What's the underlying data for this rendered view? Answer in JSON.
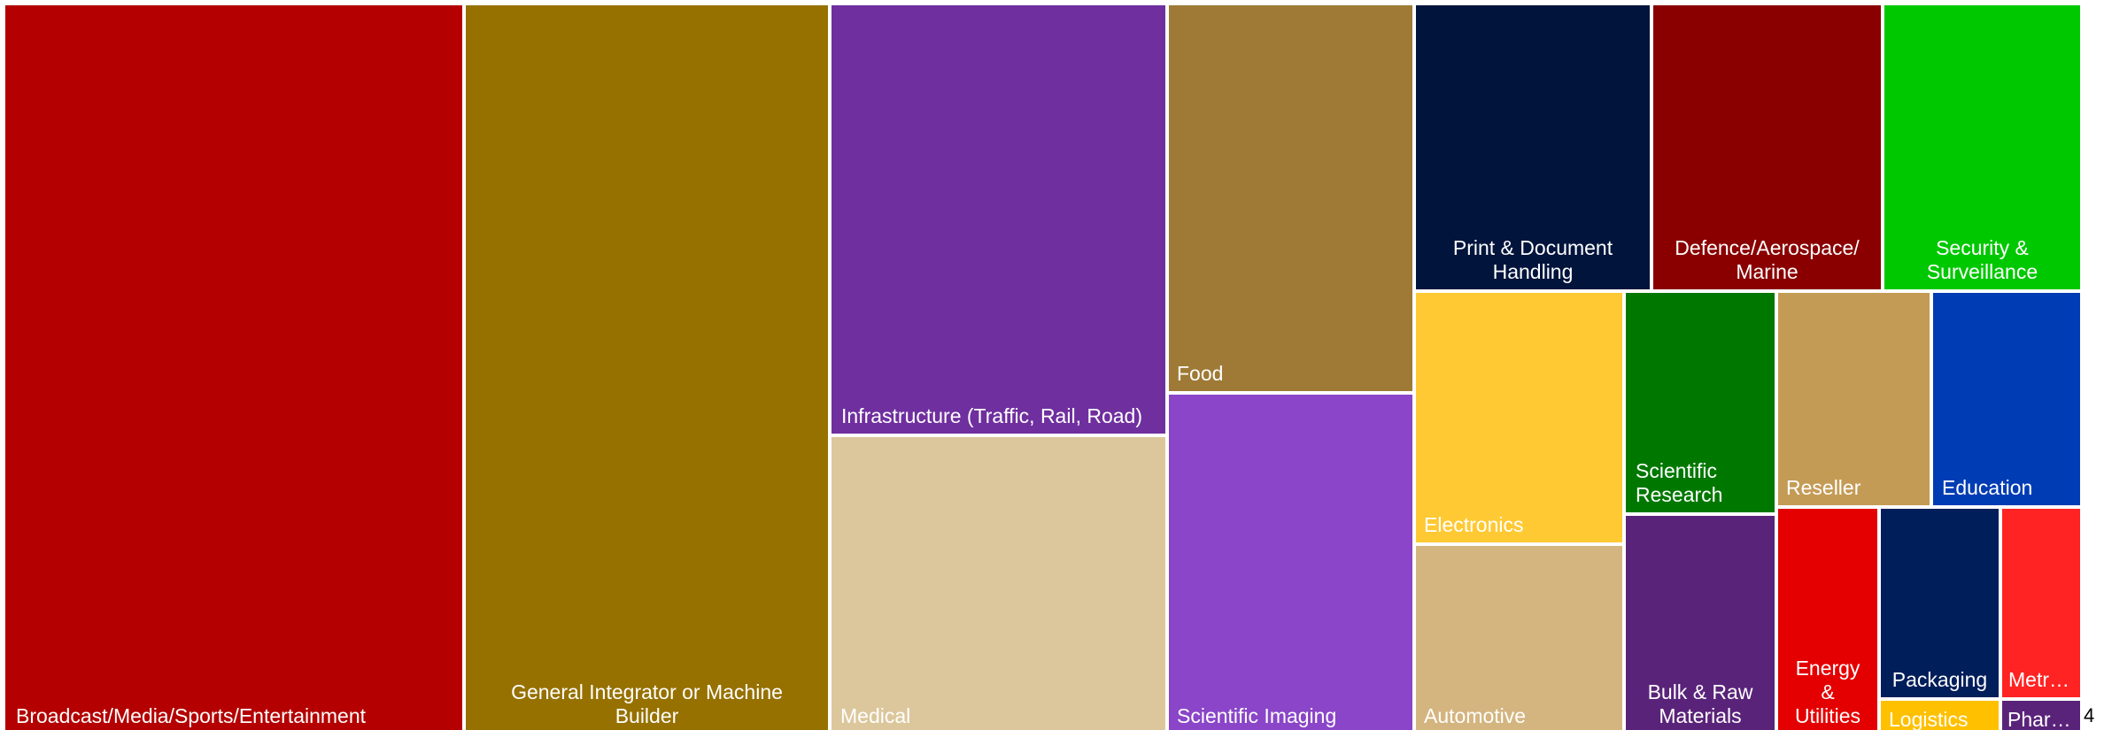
{
  "chart_data": {
    "type": "treemap",
    "title": "",
    "overflow_count": "4",
    "tiles": [
      {
        "key": "broadcast",
        "label": "Broadcast/Media/Sports/Entertainment",
        "lines": [
          "Broadcast/Media/Sports/Entertainment"
        ],
        "color": "#b40000",
        "value": 100
      },
      {
        "key": "general-integrator",
        "label": "General Integrator or Machine Builder",
        "lines": [
          "General Integrator or Machine",
          "Builder"
        ],
        "color": "#967100",
        "value": 80
      },
      {
        "key": "infrastructure",
        "label": "Infrastructure (Traffic, Rail, Road)",
        "lines": [
          "Infrastructure (Traffic, Rail, Road)"
        ],
        "color": "#6f2f9f",
        "value": 44
      },
      {
        "key": "medical",
        "label": "Medical",
        "lines": [
          "Medical"
        ],
        "color": "#dcc79c",
        "value": 31
      },
      {
        "key": "food",
        "label": "Food",
        "lines": [
          "Food"
        ],
        "color": "#9e7a36",
        "value": 29
      },
      {
        "key": "scientific-imaging",
        "label": "Scientific Imaging",
        "lines": [
          "Scientific Imaging"
        ],
        "color": "#8a45c8",
        "value": 27
      },
      {
        "key": "print-document",
        "label": "Print & Document Handling",
        "lines": [
          "Print & Document",
          "Handling"
        ],
        "color": "#00143c",
        "value": 20
      },
      {
        "key": "defence",
        "label": "Defence/Aerospace/ Marine",
        "lines": [
          "Defence/Aerospace/",
          "Marine"
        ],
        "color": "#8a0000",
        "value": 19
      },
      {
        "key": "security",
        "label": "Security & Surveillance",
        "lines": [
          "Security &",
          "Surveillance"
        ],
        "color": "#00c800",
        "value": 17
      },
      {
        "key": "electronics",
        "label": "Electronics",
        "lines": [
          "Electronics"
        ],
        "color": "#ffc933",
        "value": 15
      },
      {
        "key": "automotive",
        "label": "Automotive",
        "lines": [
          "Automotive"
        ],
        "color": "#d4b57f",
        "value": 11.5
      },
      {
        "key": "scientific-research",
        "label": "Scientific Research",
        "lines": [
          "Scientific",
          "Research"
        ],
        "color": "#007800",
        "value": 9
      },
      {
        "key": "bulk-raw",
        "label": "Bulk & Raw Materials",
        "lines": [
          "Bulk & Raw",
          "Materials"
        ],
        "color": "#5a237a",
        "value": 8.6
      },
      {
        "key": "reseller",
        "label": "Reseller",
        "lines": [
          "Reseller"
        ],
        "color": "#c49b55",
        "value": 8.2
      },
      {
        "key": "education",
        "label": "Education",
        "lines": [
          "Education"
        ],
        "color": "#003cb4",
        "value": 8
      },
      {
        "key": "energy",
        "label": "Energy & Utilities",
        "lines": [
          "Energy",
          "&",
          "Utilities"
        ],
        "color": "#e40000",
        "value": 5.3
      },
      {
        "key": "packaging",
        "label": "Packaging",
        "lines": [
          "Packaging"
        ],
        "color": "#001e5a",
        "value": 5.1
      },
      {
        "key": "logistics",
        "label": "Logistics",
        "lines": [
          "Logistics"
        ],
        "color": "#ffc000",
        "value": 1.3
      },
      {
        "key": "metr",
        "label": "Metr…",
        "lines": [
          "Metr…"
        ],
        "color": "#ff2323",
        "value": 3.7
      },
      {
        "key": "phar",
        "label": "Phar…",
        "lines": [
          "Phar…"
        ],
        "color": "#5a237a",
        "value": 1.3
      }
    ]
  }
}
